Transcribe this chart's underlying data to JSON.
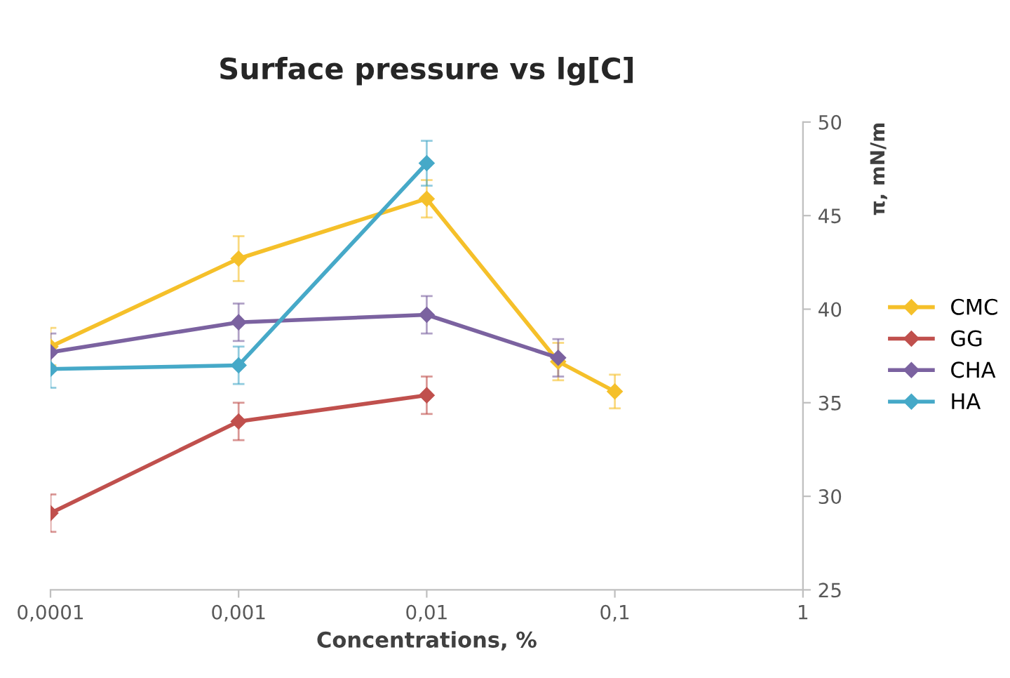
{
  "chart_data": {
    "type": "line",
    "title": "Surface pressure vs lg[C]",
    "xlabel": "Concentrations, %",
    "ylabel": "π, mN/m",
    "log": "x",
    "xlim": [
      0.0001,
      1
    ],
    "xticks": [
      {
        "value": 0.0001,
        "label": "0,0001"
      },
      {
        "value": 0.001,
        "label": "0,001"
      },
      {
        "value": 0.01,
        "label": "0,01"
      },
      {
        "value": 0.1,
        "label": "0,1"
      },
      {
        "value": 1,
        "label": "1"
      }
    ],
    "ylim": [
      25,
      50
    ],
    "yticks": [
      25,
      30,
      35,
      40,
      45,
      50
    ],
    "grid": false,
    "legend": "right",
    "marker": "diamond",
    "line_style": "solid",
    "series": [
      {
        "name": "CMC",
        "color": "#f5c02a",
        "x": [
          0.0001,
          0.001,
          0.01,
          0.05,
          0.1
        ],
        "values": [
          38.0,
          42.7,
          45.9,
          37.2,
          35.6
        ],
        "errors": [
          1,
          1.2,
          1,
          1,
          0.9
        ]
      },
      {
        "name": "GG",
        "color": "#c0504d",
        "x": [
          0.0001,
          0.001,
          0.01
        ],
        "values": [
          29.1,
          34.0,
          35.4
        ],
        "errors": [
          1,
          1,
          1
        ]
      },
      {
        "name": "CHA",
        "color": "#7b62a0",
        "x": [
          0.0001,
          0.001,
          0.01,
          0.05
        ],
        "values": [
          37.7,
          39.3,
          39.7,
          37.4
        ],
        "errors": [
          1,
          1,
          1,
          1
        ]
      },
      {
        "name": "HA",
        "color": "#46a9c8",
        "x": [
          0.0001,
          0.001,
          0.01
        ],
        "values": [
          36.8,
          37.0,
          47.8
        ],
        "errors": [
          1,
          1,
          1.2
        ]
      }
    ]
  }
}
